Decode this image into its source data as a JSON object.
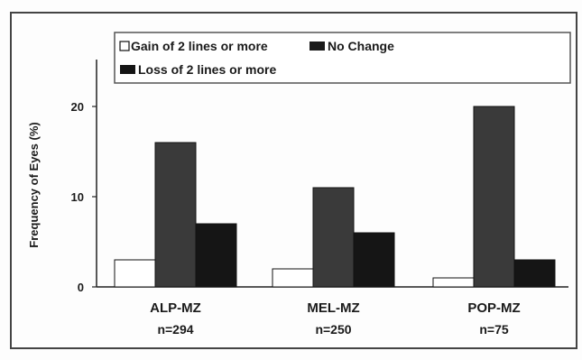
{
  "chart_data": {
    "type": "bar",
    "ylabel": "Frequency of  Eyes (%)",
    "ylim": [
      0,
      25
    ],
    "yticks": [
      0,
      10,
      20
    ],
    "grid": false,
    "legend_position": "top",
    "categories": [
      {
        "label": "ALP-MZ",
        "n": "n=294"
      },
      {
        "label": "MEL-MZ",
        "n": "n=250"
      },
      {
        "label": "POP-MZ",
        "n": "n=75"
      }
    ],
    "series": [
      {
        "name": "Gain of 2 lines or more",
        "color": "#ffffff",
        "values": [
          3,
          2,
          1
        ]
      },
      {
        "name": "No Change",
        "color": "#3a3a3a",
        "values": [
          16,
          11,
          20
        ]
      },
      {
        "name": "Loss of 2 lines or more",
        "color": "#151515",
        "values": [
          7,
          6,
          3
        ]
      }
    ]
  }
}
